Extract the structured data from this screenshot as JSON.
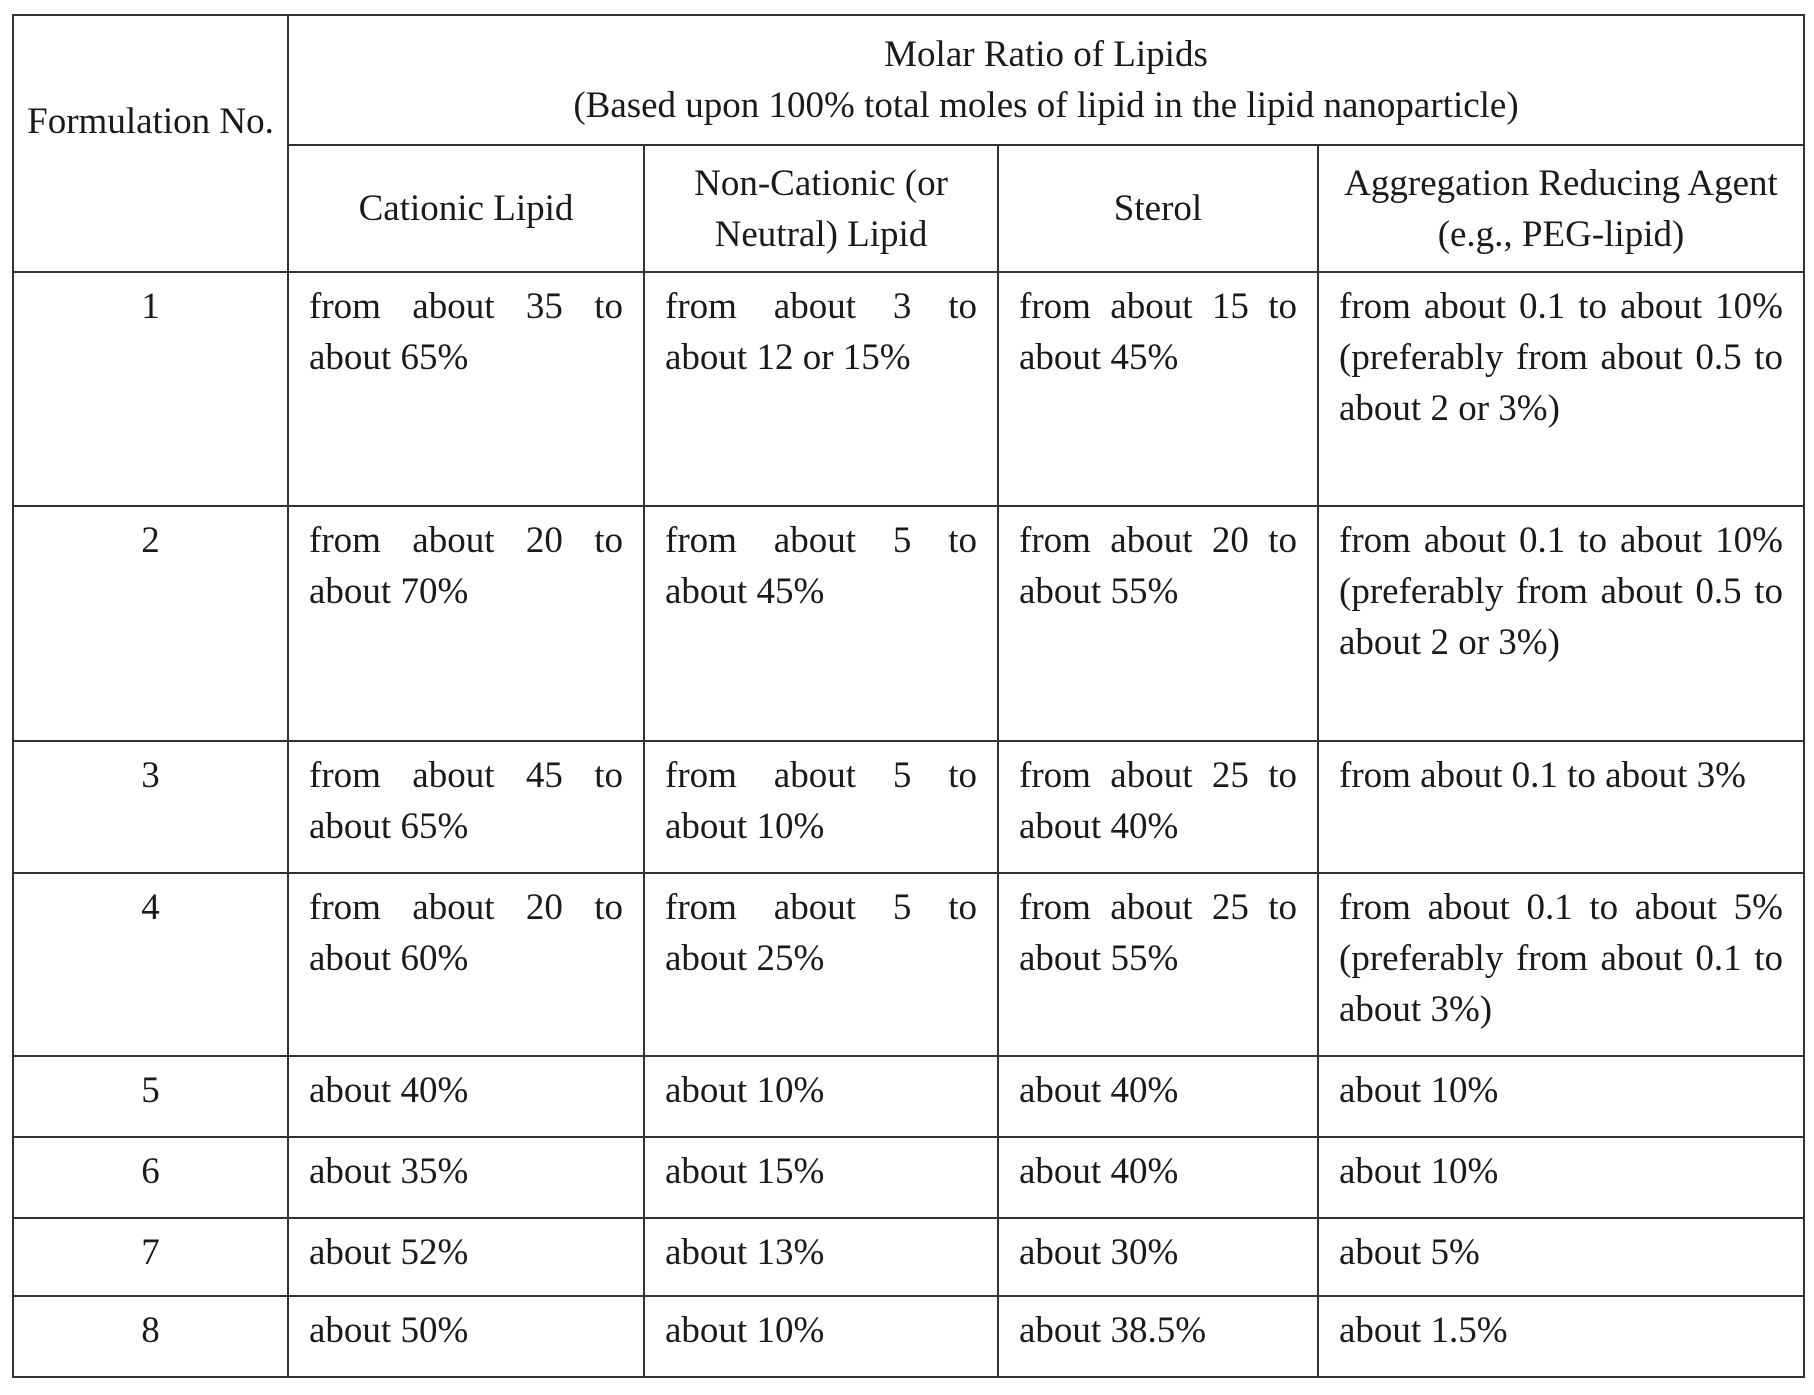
{
  "table": {
    "header": {
      "formulation_no": "Formulation No.",
      "group_title": "Molar Ratio of Lipids",
      "group_subtitle": "(Based upon 100% total moles of lipid in the lipid nanoparticle)",
      "columns": [
        "Cationic Lipid",
        "Non-Cationic (or Neutral) Lipid",
        "Sterol",
        "Aggregation Reducing Agent (e.g., PEG-lipid)"
      ]
    },
    "rows": [
      {
        "no": "1",
        "cells": [
          "from about 35 to about 65%",
          "from about 3 to about 12 or 15%",
          "from about 15 to about 45%",
          "from about 0.1 to about 10% (preferably from about 0.5 to about 2 or 3%)"
        ]
      },
      {
        "no": "2",
        "cells": [
          "from about 20 to about 70%",
          "from about 5 to about 45%",
          "from about 20 to about 55%",
          "from about 0.1 to about 10% (preferably from about 0.5 to about 2 or 3%)"
        ]
      },
      {
        "no": "3",
        "cells": [
          "from about 45 to about 65%",
          "from about 5 to about 10%",
          "from about 25 to about 40%",
          "from about 0.1 to about 3%"
        ]
      },
      {
        "no": "4",
        "cells": [
          "from about 20 to about 60%",
          "from about 5 to about 25%",
          "from about 25 to about 55%",
          "from about 0.1 to about 5% (preferably from about 0.1 to about 3%)"
        ]
      },
      {
        "no": "5",
        "cells": [
          "about 40%",
          "about 10%",
          "about 40%",
          "about 10%"
        ]
      },
      {
        "no": "6",
        "cells": [
          "about 35%",
          "about 15%",
          "about 40%",
          "about 10%"
        ]
      },
      {
        "no": "7",
        "cells": [
          "about 52%",
          "about 13%",
          "about 30%",
          "about 5%"
        ]
      },
      {
        "no": "8",
        "cells": [
          "about 50%",
          "about 10%",
          "about 38.5%",
          "about 1.5%"
        ]
      }
    ]
  }
}
